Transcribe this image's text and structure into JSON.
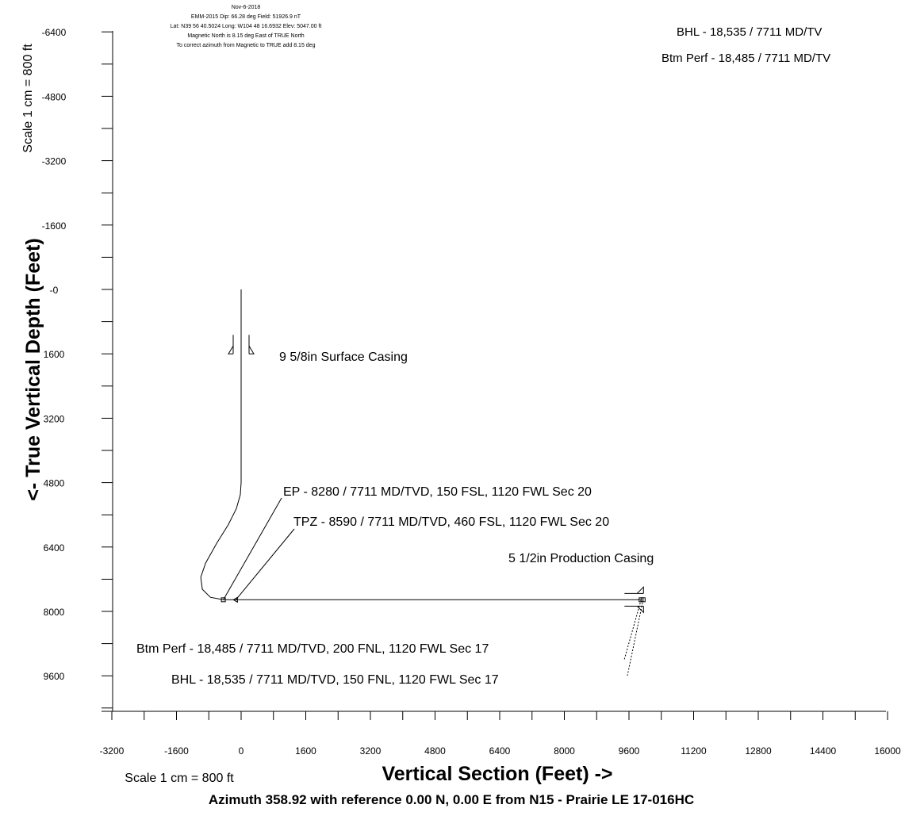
{
  "header": {
    "lines": [
      "Nov-6-2018",
      "EMM-2015 Dip: 66.28 deg Field: 51926.9 nT",
      "Lat: N39 56 40.5024 Long: W104 48 16.6932 Elev: 5047.00 ft",
      "Magnetic North is 8.15 deg East of TRUE North",
      "To correct azimuth from Magnetic to TRUE add 8.15 deg"
    ]
  },
  "top_right": {
    "bhl": "BHL - 18,535 / 7711 MD/TV",
    "btm_perf": "Btm Perf - 18,485 / 7711 MD/TV"
  },
  "annotations": {
    "surface_casing": "9 5/8in Surface Casing",
    "ep": "EP - 8280 / 7711 MD/TVD, 150 FSL, 1120 FWL Sec 20",
    "tpz": "TPZ - 8590 / 7711 MD/TVD, 460 FSL, 1120 FWL Sec 20",
    "production_casing": "5 1/2in Production Casing",
    "btm_perf": "Btm Perf - 18,485 / 7711 MD/TVD, 200 FNL, 1120 FWL Sec 17",
    "bhl": "BHL - 18,535 / 7711 MD/TVD, 150 FNL, 1120 FWL Sec 17"
  },
  "footer": {
    "scale_x": "Scale 1 cm = 800 ft",
    "azimuth": "Azimuth 358.92 with reference 0.00 N, 0.00 E from N15 - Prairie LE 17-016HC"
  },
  "colors": {
    "line": "#000000",
    "background": "#ffffff"
  },
  "chart_data": {
    "type": "line",
    "title": "",
    "xlabel": "Vertical Section (Feet) ->",
    "ylabel": "<- True Vertical Depth (Feet)",
    "y_scale_label": "Scale 1 cm = 800 ft",
    "xlim": [
      -3200,
      16000
    ],
    "ylim": [
      -6400,
      10800
    ],
    "y_inverted": true,
    "grid": false,
    "x_ticks": [
      -3200,
      -1600,
      0,
      1600,
      3200,
      4800,
      6400,
      8000,
      9600,
      11200,
      12800,
      14400,
      16000
    ],
    "x_tick_labels": [
      "-3200",
      "-1600",
      "0",
      "1600",
      "3200",
      "4800",
      "6400",
      "8000",
      "9600",
      "11200",
      "12800",
      "14400",
      "16000"
    ],
    "y_ticks": [
      -6400,
      -4800,
      -3200,
      -1600,
      0,
      1600,
      3200,
      4800,
      6400,
      8000,
      9600
    ],
    "y_tick_labels": [
      "-6400",
      "-4800",
      "-3200",
      "-1600",
      "-0",
      "1600",
      "3200",
      "4800",
      "6400",
      "8000",
      "9600"
    ],
    "series": [
      {
        "x": [
          0,
          0,
          0,
          -20,
          -120,
          -320,
          -600,
          -880,
          -1000,
          -960,
          -760,
          -440,
          -100,
          300,
          9920
        ],
        "y": [
          0,
          1600,
          4800,
          5100,
          5450,
          5850,
          6300,
          6800,
          7150,
          7450,
          7650,
          7711,
          7711,
          7711,
          7711
        ]
      }
    ],
    "markers": [
      {
        "name": "9 5/8in Surface Casing",
        "x": 0,
        "y": 1600
      },
      {
        "name": "EP",
        "x": -440,
        "y": 7711
      },
      {
        "name": "TPZ",
        "x": -130,
        "y": 7711
      },
      {
        "name": "5 1/2in Production Casing",
        "x": 9920,
        "y": 7711
      },
      {
        "name": "Btm Perf",
        "x": 9900,
        "y": 7711
      },
      {
        "name": "BHL",
        "x": 9950,
        "y": 7711
      }
    ]
  }
}
